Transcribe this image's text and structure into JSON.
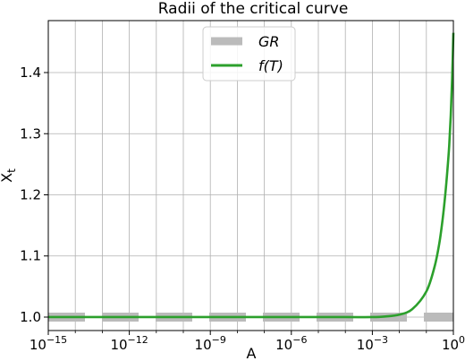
{
  "chart_data": {
    "type": "line",
    "title": "Radii of the critical curve",
    "xlabel": "A",
    "ylabel_main": "X",
    "ylabel_sub": "t",
    "xscale": "log",
    "xlim": [
      1e-15,
      1
    ],
    "ylim": [
      0.978,
      1.485
    ],
    "grid": true,
    "legend_position": "top-center",
    "x_ticks": [
      {
        "value": 1e-15,
        "base": "10",
        "exp": "−15"
      },
      {
        "value": 1e-12,
        "base": "10",
        "exp": "−12"
      },
      {
        "value": 1e-09,
        "base": "10",
        "exp": "−9"
      },
      {
        "value": 1e-06,
        "base": "10",
        "exp": "−6"
      },
      {
        "value": 0.001,
        "base": "10",
        "exp": "−3"
      },
      {
        "value": 1,
        "base": "10",
        "exp": "0"
      }
    ],
    "y_ticks": [
      {
        "value": 1.0,
        "label": "1.0"
      },
      {
        "value": 1.1,
        "label": "1.1"
      },
      {
        "value": 1.2,
        "label": "1.2"
      },
      {
        "value": 1.3,
        "label": "1.3"
      },
      {
        "value": 1.4,
        "label": "1.4"
      }
    ],
    "series": [
      {
        "name": "GR",
        "color": "#bbbbbb",
        "style": "dashed",
        "x": [
          1e-15,
          1
        ],
        "y": [
          1.0,
          1.0
        ]
      },
      {
        "name": "f(T)",
        "color": "#2ca02c",
        "style": "solid",
        "x": [
          1e-15,
          1e-06,
          0.0001,
          0.001,
          0.003,
          0.01,
          0.03,
          0.1,
          0.2,
          0.3,
          0.4,
          0.5,
          0.6,
          0.7,
          0.8,
          0.9,
          1.0
        ],
        "y": [
          1.0,
          1.0,
          1.0,
          1.0,
          1.001,
          1.004,
          1.013,
          1.042,
          1.082,
          1.12,
          1.16,
          1.2,
          1.24,
          1.28,
          1.33,
          1.39,
          1.465
        ]
      }
    ],
    "legend": [
      {
        "label": "GR",
        "series": 0
      },
      {
        "label": "f(T)",
        "series": 1
      }
    ]
  }
}
